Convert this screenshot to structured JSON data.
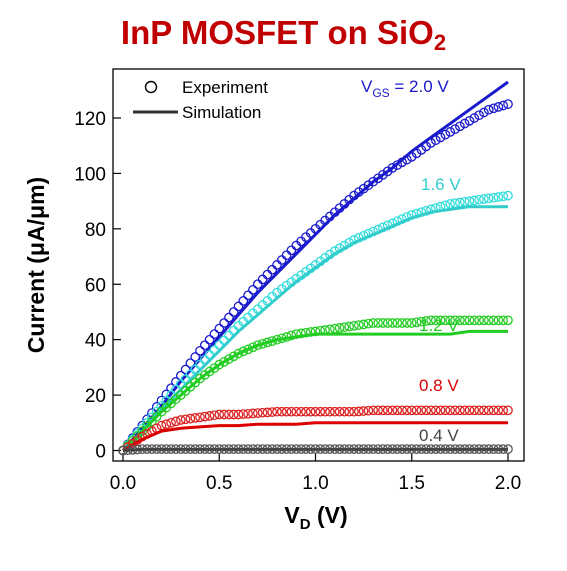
{
  "title": {
    "main": "InP MOSFET on SiO",
    "sub": "2"
  },
  "chart_data": {
    "type": "line",
    "xlabel": {
      "main": "V",
      "sub": "D",
      "rest": " (V)"
    },
    "ylabel": "Current (μA/μm)",
    "xlim": [
      0,
      2.0
    ],
    "ylim": [
      -3,
      136
    ],
    "xticks": [
      "0.0",
      "0.5",
      "1.0",
      "1.5",
      "2.0"
    ],
    "yticks": [
      "0",
      "20",
      "40",
      "60",
      "80",
      "100",
      "120"
    ],
    "legend": {
      "position": "top-left",
      "experiment": "Experiment",
      "simulation": "Simulation"
    },
    "x": [
      0,
      0.1,
      0.2,
      0.3,
      0.4,
      0.5,
      0.6,
      0.7,
      0.8,
      0.9,
      1.0,
      1.1,
      1.2,
      1.3,
      1.4,
      1.5,
      1.6,
      1.7,
      1.8,
      1.9,
      2.0
    ],
    "series": [
      {
        "label_prefix": "V",
        "label_sub": "GS",
        "label": " = 2.0 V",
        "color": "#1a1acc",
        "marker_color": "#1a1acc",
        "experiment": [
          0,
          9,
          18,
          27,
          36,
          44,
          52,
          60,
          67,
          74,
          80,
          86,
          92,
          97,
          102,
          106,
          111,
          115,
          119,
          123,
          125
        ],
        "simulation": [
          0,
          8,
          16,
          25,
          33,
          41,
          49,
          57,
          64,
          71,
          78,
          85,
          91,
          97,
          102,
          108,
          113,
          118,
          123,
          128,
          133
        ]
      },
      {
        "label": "1.6 V",
        "color": "#33cccc",
        "marker_color": "#33dddd",
        "experiment": [
          0,
          8,
          16,
          24,
          31,
          38,
          45,
          51,
          57,
          62,
          67,
          72,
          76,
          79,
          82,
          85,
          87,
          89,
          90,
          91,
          92
        ],
        "simulation": [
          0,
          7,
          15,
          22,
          29,
          36,
          43,
          49,
          55,
          61,
          66,
          71,
          75,
          78,
          81,
          84,
          86,
          87,
          88,
          88,
          88
        ]
      },
      {
        "label": "1.2 V",
        "color": "#22cc22",
        "marker_color": "#22cc22",
        "experiment": [
          0,
          7,
          14,
          20,
          26,
          31,
          35,
          38,
          40,
          42,
          43,
          44,
          45,
          46,
          46,
          46,
          47,
          47,
          47,
          47,
          47
        ],
        "simulation": [
          0,
          7,
          14,
          20,
          26,
          31,
          35,
          38,
          40,
          41,
          42,
          42,
          42,
          42,
          42,
          42,
          42,
          42,
          43,
          43,
          43
        ]
      },
      {
        "label": "0.8 V",
        "color": "#dd0000",
        "marker_color": "#dd2222",
        "experiment": [
          0,
          5,
          9,
          11,
          12,
          13,
          13,
          13.5,
          14,
          14,
          14,
          14,
          14,
          14.5,
          14.5,
          14.5,
          14.5,
          14.5,
          14.5,
          14.5,
          14.5
        ],
        "simulation": [
          0,
          4,
          7,
          8,
          8.5,
          9,
          9,
          9.5,
          9.5,
          9.5,
          10,
          10,
          10,
          10,
          10,
          10,
          10,
          10,
          10,
          10,
          10
        ]
      },
      {
        "label": "0.4 V",
        "color": "#444444",
        "marker_color": "#555555",
        "experiment": [
          0,
          0.5,
          0.5,
          0.5,
          0.5,
          0.5,
          0.5,
          0.5,
          0.5,
          0.5,
          0.5,
          0.5,
          0.5,
          0.5,
          0.5,
          0.5,
          0.5,
          0.5,
          0.5,
          0.5,
          0.5
        ],
        "simulation": [
          0,
          0.4,
          0.4,
          0.4,
          0.4,
          0.4,
          0.4,
          0.4,
          0.4,
          0.4,
          0.4,
          0.4,
          0.4,
          0.4,
          0.4,
          0.4,
          0.4,
          0.4,
          0.4,
          0.4,
          0.4
        ]
      }
    ]
  }
}
